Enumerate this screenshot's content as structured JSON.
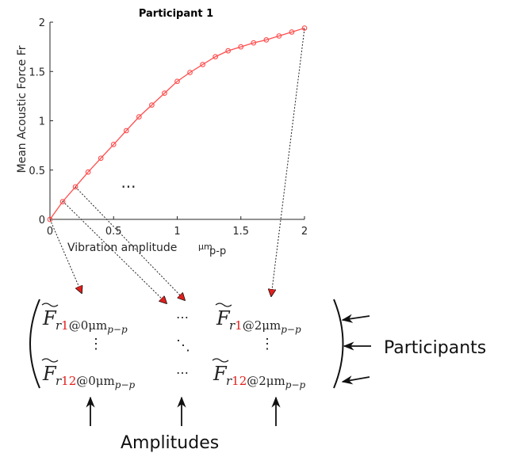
{
  "chart_data": {
    "type": "line",
    "title": "Participant 1",
    "xlabel": "Vibration amplitude",
    "xlabel_unit": "μm",
    "xlabel_unit_sub": "p-p",
    "ylabel": "Mean Acoustic Force Fr",
    "xlim": [
      0,
      2
    ],
    "ylim": [
      0,
      2
    ],
    "xticks": [
      0,
      0.5,
      1,
      1.5,
      2
    ],
    "xtick_labels": [
      "0",
      "0.5",
      "1",
      "1.5",
      "2"
    ],
    "yticks": [
      0,
      0.5,
      1,
      1.5,
      2
    ],
    "ytick_labels": [
      "0",
      "0.5",
      "1",
      "1.5",
      "2"
    ],
    "ellipsis": "...",
    "series": [
      {
        "color": "#ff4d4d",
        "marker": "circle",
        "x": [
          0,
          0.1,
          0.2,
          0.3,
          0.4,
          0.5,
          0.6,
          0.7,
          0.8,
          0.9,
          1.0,
          1.1,
          1.2,
          1.3,
          1.4,
          1.5,
          1.6,
          1.7,
          1.8,
          1.9,
          2.0
        ],
        "y": [
          0,
          0.18,
          0.33,
          0.48,
          0.62,
          0.76,
          0.9,
          1.04,
          1.16,
          1.28,
          1.4,
          1.49,
          1.57,
          1.65,
          1.71,
          1.75,
          1.79,
          1.82,
          1.86,
          1.9,
          1.94
        ]
      }
    ]
  },
  "matrix": {
    "row1": {
      "c1": {
        "sym": "F",
        "sub_r": "r",
        "sub_num": "1",
        "sub_rest": "@0μm",
        "sub_pp": "p−p"
      },
      "c2": "⋯",
      "c3": {
        "sym": "F",
        "sub_r": "r",
        "sub_num": "1",
        "sub_rest": "@2μm",
        "sub_pp": "p−p"
      }
    },
    "row2": {
      "c1": "⋮",
      "c2": "⋱",
      "c3": "⋮"
    },
    "row3": {
      "c1": {
        "sym": "F",
        "sub_r": "r",
        "sub_num": "12",
        "sub_rest": "@0μm",
        "sub_pp": "p−p"
      },
      "c2": "⋯",
      "c3": {
        "sym": "F",
        "sub_r": "r",
        "sub_num": "12",
        "sub_rest": "@2μm",
        "sub_pp": "p−p"
      }
    },
    "highlight_color": "#e0201d"
  },
  "labels": {
    "participants": "Participants",
    "amplitudes": "Amplitudes"
  }
}
